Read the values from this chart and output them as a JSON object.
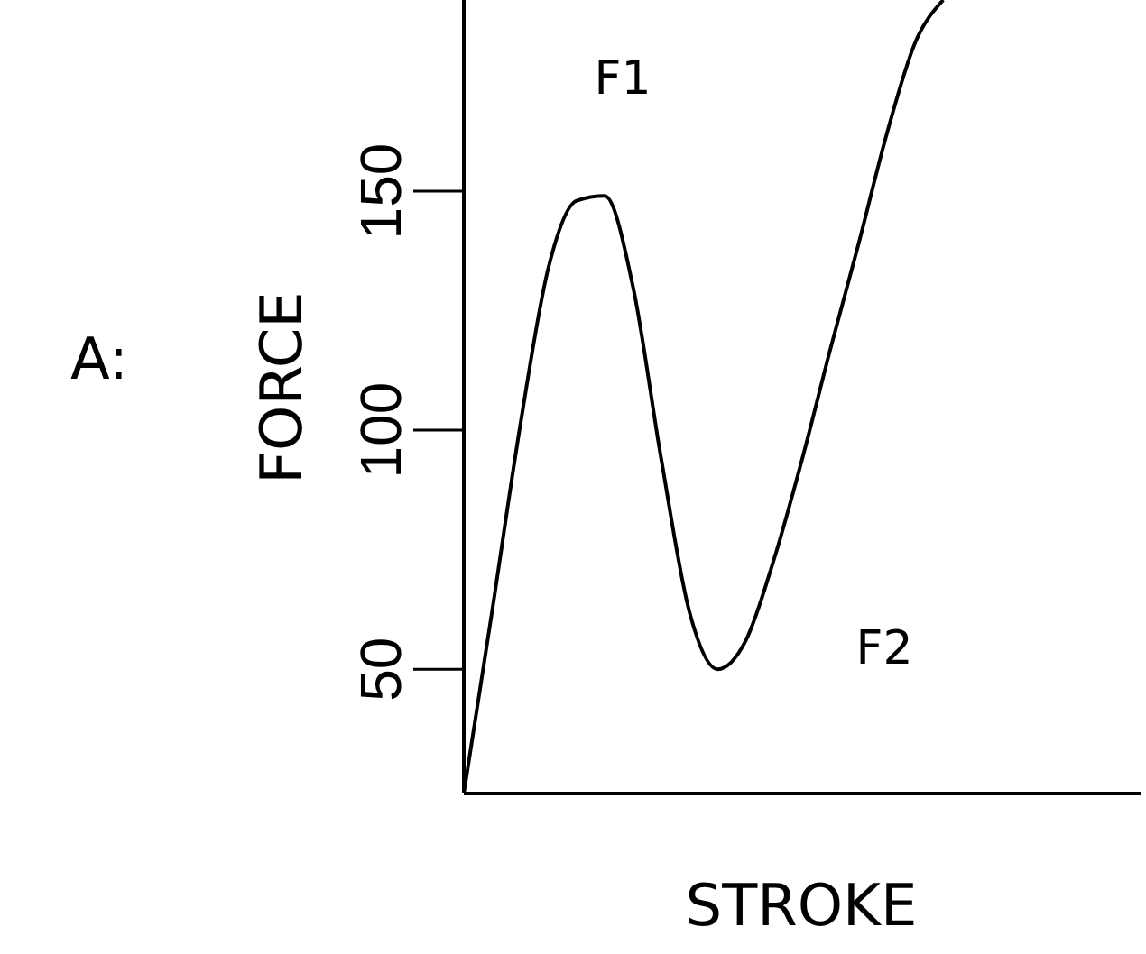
{
  "chart_data": {
    "type": "line",
    "ylabel": "FORCE",
    "xlabel": "STROKE",
    "annotations": [
      "A:",
      "F1",
      "F2"
    ],
    "categories": [
      null,
      null,
      null,
      null,
      null,
      null,
      null,
      null,
      null,
      null,
      null,
      null,
      null,
      null,
      null,
      null,
      null,
      null,
      null,
      null,
      null,
      null,
      null,
      null,
      null
    ],
    "series": [
      {
        "color": "#000000",
        "values": [
          24,
          62,
          101,
          134,
          148,
          149,
          130,
          94,
          62,
          50,
          56,
          73,
          94,
          117,
          139,
          162,
          181,
          190,
          null,
          null,
          null,
          null,
          null,
          null,
          null
        ]
      }
    ],
    "ylim": [
      24,
      190
    ],
    "yticks": [
      50,
      100,
      150
    ],
    "grid": false,
    "marker": "none",
    "line_style": "solid"
  }
}
